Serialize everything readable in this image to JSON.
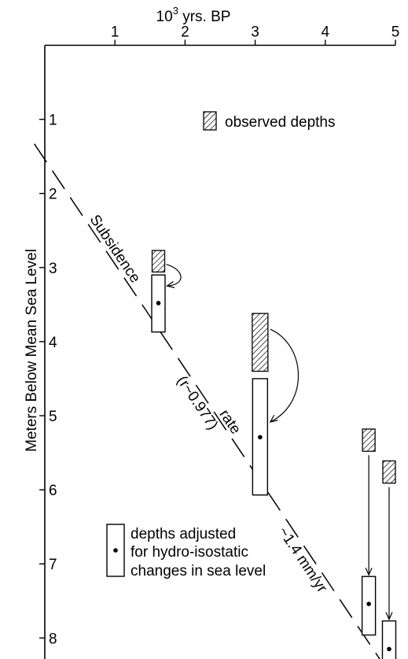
{
  "chart_data": {
    "type": "scatter",
    "x_axis": {
      "label_base": "10",
      "label_exp": "3",
      "label_suffix": " yrs. BP",
      "position": "top",
      "ticks": [
        1,
        2,
        3,
        4,
        5
      ],
      "range": [
        0,
        5
      ]
    },
    "y_axis": {
      "label": "Meters Below Mean Sea Level",
      "ticks": [
        1,
        2,
        3,
        4,
        5,
        6,
        7,
        8
      ],
      "range": [
        0,
        8.4
      ],
      "inverted": true
    },
    "observed_depths": [
      {
        "x": 1.62,
        "y_top": 2.77,
        "y_bottom": 3.06
      },
      {
        "x": 3.07,
        "y_top": 3.62,
        "y_bottom": 4.4
      },
      {
        "x": 4.62,
        "y_top": 5.18,
        "y_bottom": 5.48
      },
      {
        "x": 4.91,
        "y_top": 5.61,
        "y_bottom": 5.91
      }
    ],
    "adjusted_depths": [
      {
        "x": 1.62,
        "y": 3.48,
        "y_top": 3.1,
        "y_bottom": 3.87
      },
      {
        "x": 3.07,
        "y": 5.29,
        "y_top": 4.5,
        "y_bottom": 6.07
      },
      {
        "x": 4.62,
        "y": 7.54,
        "y_top": 7.17,
        "y_bottom": 7.96
      },
      {
        "x": 4.91,
        "y": 8.15,
        "y_top": 7.77,
        "y_bottom": 8.4
      }
    ],
    "trend_line": {
      "x": [
        -0.15,
        5.0
      ],
      "y": [
        1.33,
        8.6
      ]
    },
    "trend_labels": {
      "word1": "Subsidence",
      "word2": "rate",
      "correlation": "(r~0.977)",
      "rate": "~1.4 mm/yr"
    },
    "legend": {
      "observed": "observed depths",
      "adjusted_lines": [
        "depths adjusted",
        "for hydro-isostatic",
        "changes in sea level"
      ]
    }
  }
}
